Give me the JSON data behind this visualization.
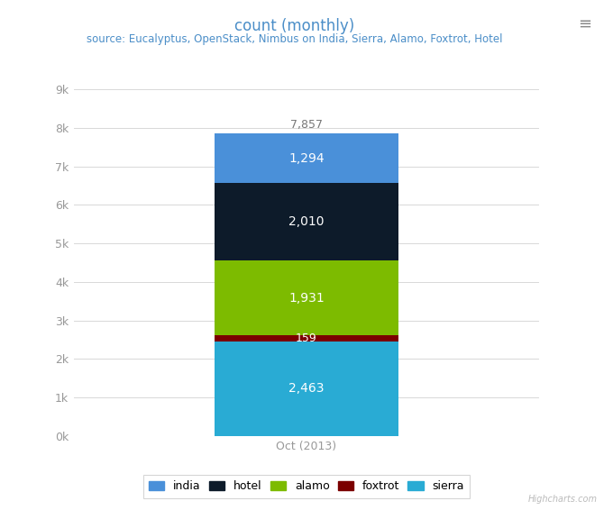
{
  "title": "count (monthly)",
  "subtitle": "source: Eucalyptus, OpenStack, Nimbus on India, Sierra, Alamo, Foxtrot, Hotel",
  "xlabel": "Oct (2013)",
  "total_label": "7,857",
  "segments": [
    {
      "label": "sierra",
      "value": 2463,
      "color": "#29ABD4",
      "text_color": "white"
    },
    {
      "label": "foxtrot",
      "value": 159,
      "color": "#7B0000",
      "text_color": "white"
    },
    {
      "label": "alamo",
      "value": 1931,
      "color": "#7DBB00",
      "text_color": "white"
    },
    {
      "label": "hotel",
      "value": 2010,
      "color": "#0D1B2A",
      "text_color": "white"
    },
    {
      "label": "india",
      "value": 1294,
      "color": "#4A90D9",
      "text_color": "white"
    }
  ],
  "legend_order": [
    "india",
    "hotel",
    "alamo",
    "foxtrot",
    "sierra"
  ],
  "legend_colors": {
    "india": "#4A90D9",
    "hotel": "#0D1B2A",
    "alamo": "#7DBB00",
    "foxtrot": "#7B0000",
    "sierra": "#29ABD4"
  },
  "yticks": [
    0,
    1000,
    2000,
    3000,
    4000,
    5000,
    6000,
    7000,
    8000,
    9000
  ],
  "ytick_labels": [
    "0k",
    "1k",
    "2k",
    "3k",
    "4k",
    "5k",
    "6k",
    "7k",
    "8k",
    "9k"
  ],
  "ylim": [
    0,
    9000
  ],
  "bg_color": "#FFFFFF",
  "grid_color": "#D8D8D8",
  "title_color": "#4B8EC8",
  "subtitle_color": "#4B8EC8",
  "axis_color": "#999999",
  "total_color": "#777777",
  "bar_width": 0.55
}
